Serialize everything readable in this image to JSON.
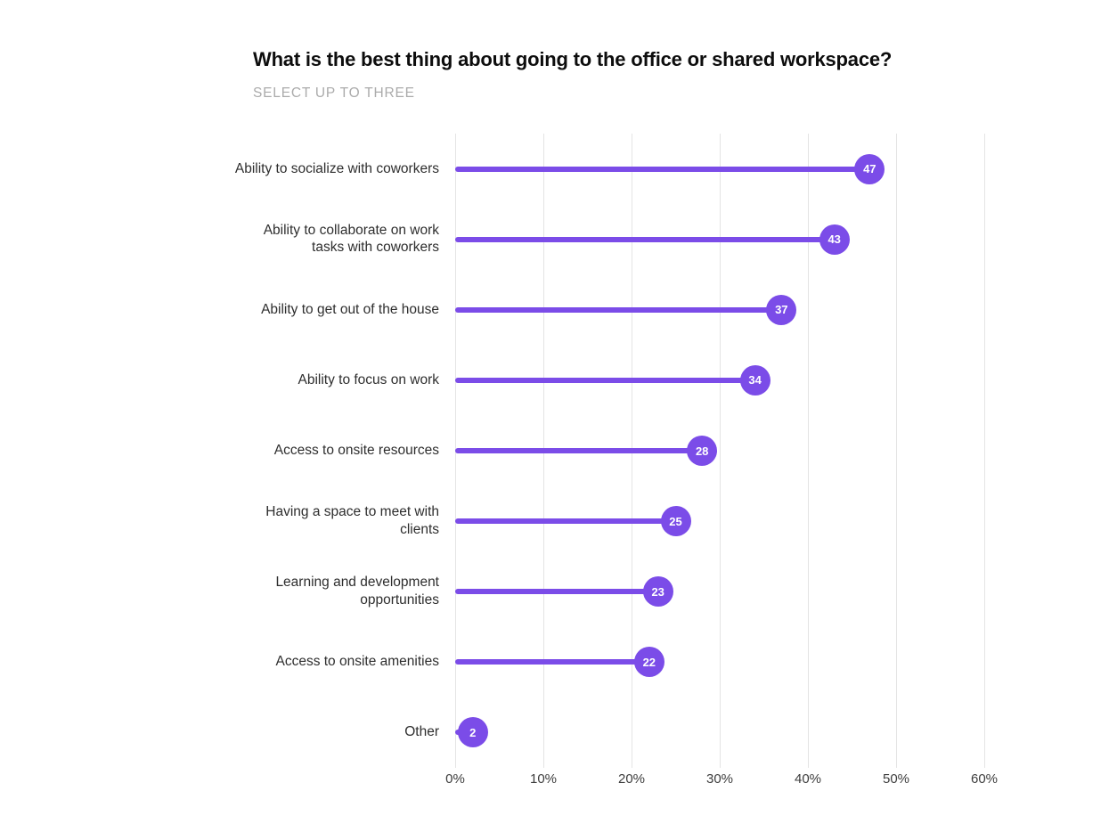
{
  "title": "What is the best thing about going to the office or shared workspace?",
  "subtitle": "SELECT UP TO THREE",
  "colors": {
    "accent_purple": "#7b4ce8",
    "gridline": "#e4e4e4",
    "title_text": "#0d0d0d",
    "subtitle_text": "#ababab",
    "category_text": "#2e2e2e",
    "tick_text": "#3d3d3d",
    "marker_value_text": "#ffffff",
    "background": "#ffffff"
  },
  "chart_data": {
    "type": "bar",
    "style": "lollipop-horizontal",
    "title": "What is the best thing about going to the office or shared workspace?",
    "subtitle": "SELECT UP TO THREE",
    "categories": [
      "Ability to socialize with coworkers",
      "Ability to collaborate on work tasks with coworkers",
      "Ability to get out of the house",
      "Ability to focus on work",
      "Access to onsite resources",
      "Having a space to meet with clients",
      "Learning and development opportunities",
      "Access to onsite amenities",
      "Other"
    ],
    "values": [
      47,
      43,
      37,
      34,
      28,
      25,
      23,
      22,
      2
    ],
    "unit": "%",
    "xlabel": "",
    "ylabel": "",
    "xlim": [
      0,
      60
    ],
    "x_ticks": [
      "0%",
      "10%",
      "20%",
      "30%",
      "40%",
      "50%",
      "60%"
    ],
    "x_tick_values": [
      0,
      10,
      20,
      30,
      40,
      50,
      60
    ],
    "grid": "vertical-only",
    "legend": "none",
    "data_labels": "inside-marker"
  }
}
